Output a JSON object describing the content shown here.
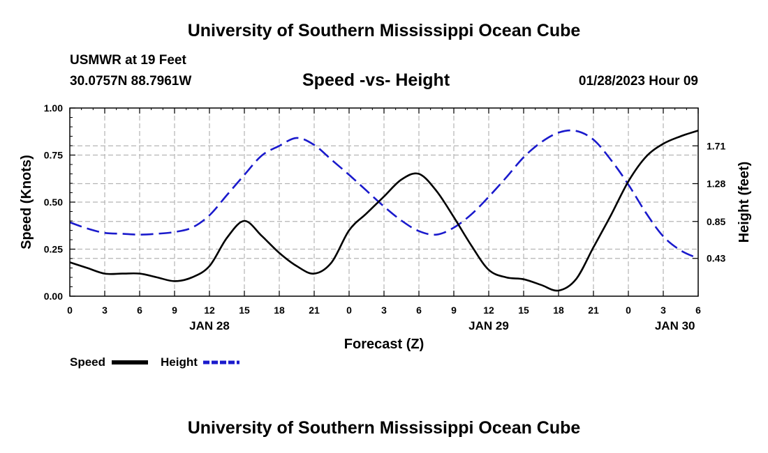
{
  "header": {
    "title": "University of Southern Mississippi Ocean Cube",
    "station": "USMWR at 19 Feet",
    "coords": "30.0757N  88.7961W",
    "subtitle": "Speed -vs- Height",
    "datetime": "01/28/2023 Hour 09"
  },
  "footer": {
    "title": "University of Southern Mississippi Ocean Cube"
  },
  "chart_data": {
    "type": "line",
    "title": "Speed -vs- Height",
    "xlabel": "Forecast (Z)",
    "ylabel": "Speed (Knots)",
    "ylabel_right": "Height (feet)",
    "grid": true,
    "x_hours": [
      0,
      3,
      6,
      9,
      12,
      15,
      18,
      21,
      24,
      27,
      30,
      33,
      36,
      39,
      42,
      45,
      48,
      51,
      54
    ],
    "x_tick_labels": [
      "0",
      "3",
      "6",
      "9",
      "12",
      "15",
      "18",
      "21",
      "0",
      "3",
      "6",
      "9",
      "12",
      "15",
      "18",
      "21",
      "0",
      "3",
      "6"
    ],
    "date_labels": [
      {
        "hour": 12,
        "label": "JAN 28"
      },
      {
        "hour": 36,
        "label": "JAN 29"
      },
      {
        "hour": 52,
        "label": "JAN 30"
      }
    ],
    "left_axis": {
      "ylim": [
        0,
        1
      ],
      "ticks": [
        0,
        0.25,
        0.5,
        0.75,
        1.0
      ],
      "tick_labels": [
        "0.00",
        "0.25",
        "0.50",
        "0.75",
        "1.00"
      ]
    },
    "right_axis": {
      "ylim": [
        0.0,
        2.14
      ],
      "ticks": [
        0.43,
        0.85,
        1.28,
        1.71
      ],
      "tick_labels": [
        "0.43",
        "0.85",
        "1.28",
        "1.71"
      ]
    },
    "series": [
      {
        "name": "Speed",
        "axis": "left",
        "color": "#000000",
        "dash": "solid",
        "x": [
          0,
          1.5,
          3,
          4.5,
          6,
          7.5,
          9,
          10.5,
          12,
          13.5,
          15,
          16.5,
          18,
          19.5,
          21,
          22.5,
          24,
          25.5,
          27,
          28.5,
          30,
          31.5,
          33,
          34.5,
          36,
          37.5,
          39,
          40.5,
          42,
          43.5,
          45,
          46.5,
          48,
          49.5,
          51,
          52.5,
          54
        ],
        "y": [
          0.18,
          0.15,
          0.12,
          0.12,
          0.12,
          0.1,
          0.08,
          0.1,
          0.16,
          0.31,
          0.4,
          0.32,
          0.23,
          0.16,
          0.12,
          0.18,
          0.35,
          0.44,
          0.53,
          0.62,
          0.65,
          0.56,
          0.42,
          0.27,
          0.14,
          0.1,
          0.09,
          0.06,
          0.03,
          0.09,
          0.26,
          0.43,
          0.61,
          0.74,
          0.81,
          0.85,
          0.88
        ]
      },
      {
        "name": "Height",
        "axis": "right",
        "color": "#1a1acc",
        "dash": "dashed",
        "x": [
          0,
          1.5,
          3,
          4.5,
          6,
          7.5,
          9,
          10.5,
          12,
          13.5,
          15,
          16.5,
          18,
          19.5,
          21,
          22.5,
          24,
          25.5,
          27,
          28.5,
          30,
          31.5,
          33,
          34.5,
          36,
          37.5,
          39,
          40.5,
          42,
          43.5,
          45,
          46.5,
          48,
          49.5,
          51,
          52.5,
          54
        ],
        "y": [
          0.84,
          0.77,
          0.72,
          0.71,
          0.7,
          0.71,
          0.73,
          0.78,
          0.92,
          1.15,
          1.38,
          1.6,
          1.71,
          1.8,
          1.72,
          1.55,
          1.38,
          1.2,
          1.02,
          0.86,
          0.74,
          0.7,
          0.78,
          0.93,
          1.13,
          1.35,
          1.58,
          1.75,
          1.86,
          1.88,
          1.78,
          1.55,
          1.27,
          0.95,
          0.68,
          0.52,
          0.43
        ]
      }
    ]
  }
}
